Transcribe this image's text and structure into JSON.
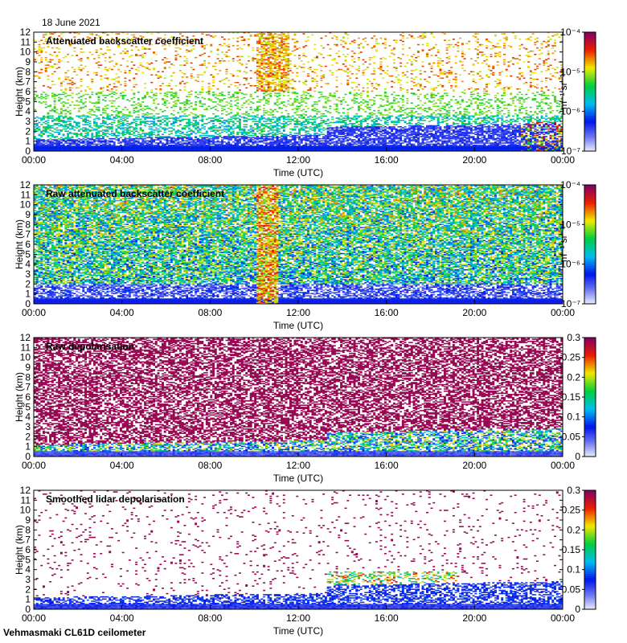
{
  "date_label": "18 June 2021",
  "footer_label": "Vehmasmaki CL61D ceilometer",
  "chart_data": [
    {
      "type": "heatmap",
      "title": "Attenuated backscatter coefficient",
      "xlabel": "Time (UTC)",
      "ylabel": "Height (km)",
      "x_ticks": [
        "00:00",
        "04:00",
        "08:00",
        "12:00",
        "16:00",
        "20:00",
        "00:00"
      ],
      "y_ticks": [
        "0",
        "1",
        "2",
        "3",
        "4",
        "5",
        "6",
        "7",
        "8",
        "9",
        "10",
        "11",
        "12"
      ],
      "ylim": [
        0,
        12
      ],
      "colorbar": {
        "scale": "log",
        "range": [
          1e-07,
          0.0001
        ],
        "ticks": [
          "10⁻⁷",
          "10⁻⁶",
          "10⁻⁵",
          "10⁻⁴"
        ],
        "unit": "m⁻¹ sr⁻¹"
      },
      "style": "clean"
    },
    {
      "type": "heatmap",
      "title": "Raw attenuated backscatter coefficient",
      "xlabel": "Time (UTC)",
      "ylabel": "Height (km)",
      "x_ticks": [
        "00:00",
        "04:00",
        "08:00",
        "12:00",
        "16:00",
        "20:00",
        "00:00"
      ],
      "y_ticks": [
        "0",
        "1",
        "2",
        "3",
        "4",
        "5",
        "6",
        "7",
        "8",
        "9",
        "10",
        "11",
        "12"
      ],
      "ylim": [
        0,
        12
      ],
      "colorbar": {
        "scale": "log",
        "range": [
          1e-07,
          0.0001
        ],
        "ticks": [
          "10⁻⁷",
          "10⁻⁶",
          "10⁻⁵",
          "10⁻⁴"
        ],
        "unit": "m⁻¹ sr⁻¹"
      },
      "style": "raw"
    },
    {
      "type": "heatmap",
      "title": "Raw depolarisation",
      "xlabel": "Time (UTC)",
      "ylabel": "Height (km)",
      "x_ticks": [
        "00:00",
        "04:00",
        "08:00",
        "12:00",
        "16:00",
        "20:00",
        "00:00"
      ],
      "y_ticks": [
        "0",
        "1",
        "2",
        "3",
        "4",
        "5",
        "6",
        "7",
        "8",
        "9",
        "10",
        "11",
        "12"
      ],
      "ylim": [
        0,
        12
      ],
      "colorbar": {
        "scale": "linear",
        "range": [
          0,
          0.3
        ],
        "ticks": [
          "0",
          "0.05",
          "0.1",
          "0.15",
          "0.2",
          "0.25",
          "0.3"
        ],
        "unit": ""
      },
      "style": "depol-raw"
    },
    {
      "type": "heatmap",
      "title": "Smoothed lidar depolarisation",
      "xlabel": "Time (UTC)",
      "ylabel": "Height (km)",
      "x_ticks": [
        "00:00",
        "04:00",
        "08:00",
        "12:00",
        "16:00",
        "20:00",
        "00:00"
      ],
      "y_ticks": [
        "0",
        "1",
        "2",
        "3",
        "4",
        "5",
        "6",
        "7",
        "8",
        "9",
        "10",
        "11",
        "12"
      ],
      "ylim": [
        0,
        12
      ],
      "colorbar": {
        "scale": "linear",
        "range": [
          0,
          0.3
        ],
        "ticks": [
          "0",
          "0.05",
          "0.1",
          "0.15",
          "0.2",
          "0.25",
          "0.3"
        ],
        "unit": ""
      },
      "style": "depol-smooth"
    }
  ]
}
